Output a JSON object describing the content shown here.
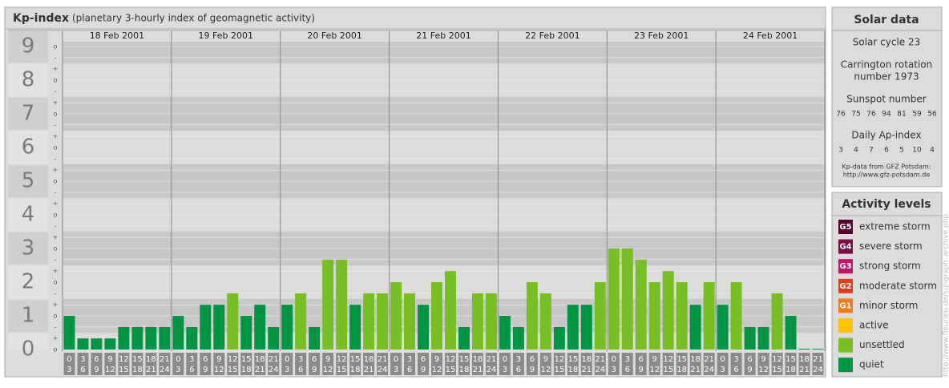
{
  "chart_data": {
    "type": "bar",
    "title": "Kp-index",
    "subtitle": "(planetary 3-hourly index of geomagnetic activity)",
    "ylim": [
      0,
      9
    ],
    "yticks": [
      0,
      1,
      2,
      3,
      4,
      5,
      6,
      7,
      8,
      9
    ],
    "yminorticks": [
      {
        "value": 0,
        "label": "o"
      },
      {
        "value": 0.33,
        "label": "+"
      },
      {
        "value": 0.67,
        "label": "-"
      },
      {
        "value": 1,
        "label": "o"
      },
      {
        "value": 1.33,
        "label": "+"
      },
      {
        "value": 1.67,
        "label": "-"
      },
      {
        "value": 2,
        "label": "o"
      },
      {
        "value": 2.33,
        "label": "+"
      },
      {
        "value": 2.67,
        "label": "-"
      },
      {
        "value": 3,
        "label": "o"
      },
      {
        "value": 3.33,
        "label": "+"
      },
      {
        "value": 3.67,
        "label": "-"
      },
      {
        "value": 4,
        "label": "o"
      },
      {
        "value": 4.33,
        "label": "+"
      },
      {
        "value": 4.67,
        "label": "-"
      },
      {
        "value": 5,
        "label": "o"
      },
      {
        "value": 5.33,
        "label": "+"
      },
      {
        "value": 5.67,
        "label": "-"
      },
      {
        "value": 6,
        "label": "o"
      },
      {
        "value": 6.33,
        "label": "+"
      },
      {
        "value": 6.67,
        "label": "-"
      },
      {
        "value": 7,
        "label": "o"
      },
      {
        "value": 7.33,
        "label": "+"
      },
      {
        "value": 7.67,
        "label": "-"
      },
      {
        "value": 8,
        "label": "o"
      },
      {
        "value": 8.33,
        "label": "+"
      },
      {
        "value": 8.67,
        "label": "-"
      },
      {
        "value": 9,
        "label": "o"
      }
    ],
    "grid": true,
    "hours": [
      {
        "from": "0",
        "to": "3"
      },
      {
        "from": "3",
        "to": "6"
      },
      {
        "from": "6",
        "to": "9"
      },
      {
        "from": "9",
        "to": "12"
      },
      {
        "from": "12",
        "to": "15"
      },
      {
        "from": "15",
        "to": "18"
      },
      {
        "from": "18",
        "to": "21"
      },
      {
        "from": "21",
        "to": "24"
      }
    ],
    "days": [
      {
        "date": "18 Feb 2001",
        "values": [
          1,
          0.33,
          0.33,
          0.33,
          0.67,
          0.67,
          0.67,
          0.67
        ]
      },
      {
        "date": "19 Feb 2001",
        "values": [
          1,
          0.67,
          1.33,
          1.33,
          1.67,
          1,
          1.33,
          0.67
        ]
      },
      {
        "date": "20 Feb 2001",
        "values": [
          1.33,
          1.67,
          0.67,
          2.67,
          2.67,
          1.33,
          1.67,
          1.67
        ]
      },
      {
        "date": "21 Feb 2001",
        "values": [
          2,
          1.67,
          1.33,
          2,
          2.33,
          0.67,
          1.67,
          1.67
        ]
      },
      {
        "date": "22 Feb 2001",
        "values": [
          1,
          0.67,
          2,
          1.67,
          0.67,
          1.33,
          1.33,
          2
        ]
      },
      {
        "date": "23 Feb 2001",
        "values": [
          3,
          3,
          2.67,
          2,
          2.33,
          2,
          1.33,
          2
        ]
      },
      {
        "date": "24 Feb 2001",
        "values": [
          1.33,
          2,
          0.67,
          0.67,
          1.67,
          1,
          0,
          0
        ]
      }
    ]
  },
  "solar": {
    "title": "Solar data",
    "cycle": "Solar cycle 23",
    "carrington": [
      "Carrington rotation",
      "number 1973"
    ],
    "sunspot_title": "Sunspot number",
    "sunspot": [
      "76",
      "75",
      "76",
      "94",
      "81",
      "59",
      "56"
    ],
    "ap_title": "Daily Ap-index",
    "ap": [
      "3",
      "4",
      "7",
      "6",
      "5",
      "10",
      "4"
    ],
    "source": [
      "Kp-data from GFZ Potsdam:",
      "http://www.gfz-potsdam.de"
    ]
  },
  "legend": {
    "title": "Activity levels",
    "items": [
      {
        "badge": "G5",
        "name": "extreme storm",
        "color": "#56002c"
      },
      {
        "badge": "G4",
        "name": "severe storm",
        "color": "#7d0c44"
      },
      {
        "badge": "G3",
        "name": "strong storm",
        "color": "#c0186c"
      },
      {
        "badge": "G2",
        "name": "moderate storm",
        "color": "#e03c1e"
      },
      {
        "badge": "G1",
        "name": "minor storm",
        "color": "#ee7a1c"
      },
      {
        "name": "active",
        "color": "#ffc600"
      },
      {
        "name": "unsettled",
        "color": "#79be24"
      },
      {
        "name": "quiet",
        "color": "#009444"
      }
    ]
  },
  "credit": "http://www.fleurieu.de/sungraph_archive.php"
}
